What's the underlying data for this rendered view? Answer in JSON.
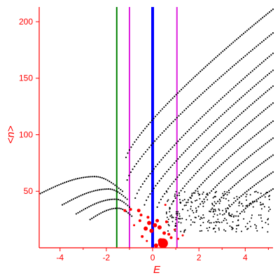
{
  "chart_data": {
    "type": "scatter",
    "xlabel": "E",
    "ylabel": "<n>",
    "xlim": [
      -4.9,
      5.2
    ],
    "ylim": [
      0,
      213
    ],
    "xticks": [
      "-4",
      "-2",
      "0",
      "2",
      "4"
    ],
    "xtick_values": [
      -4,
      -2,
      0,
      2,
      4
    ],
    "yticks": [
      "50",
      "100",
      "150",
      "200"
    ],
    "ytick_values": [
      50,
      100,
      150,
      200
    ],
    "grid": false,
    "legend": "none",
    "colors": {
      "axis": "#ff0000",
      "tick_text": "#ff0000",
      "dots": "#000000",
      "highlight": "#ff0000",
      "line_zero": "#0000ff",
      "line_sides": "#dd22dd",
      "line_left": "#008000"
    },
    "vertical_lines": [
      {
        "x": -1.55,
        "color": "#008000",
        "width": "thin"
      },
      {
        "x": -1.0,
        "color": "#dd22dd",
        "width": "thin"
      },
      {
        "x": 0.0,
        "color": "#0000ff",
        "width": "thick"
      },
      {
        "x": 1.05,
        "color": "#dd22dd",
        "width": "thin"
      }
    ],
    "dot_series": [
      {
        "from": [
          -1.15,
          80
        ],
        "to": [
          5.2,
          211
        ],
        "step": 0.075,
        "shape": "concave"
      },
      {
        "from": [
          -1.1,
          60
        ],
        "to": [
          5.2,
          190
        ],
        "step": 0.08,
        "shape": "concave"
      },
      {
        "from": [
          -0.75,
          44
        ],
        "to": [
          5.2,
          172
        ],
        "step": 0.08,
        "shape": "concave"
      },
      {
        "from": [
          -0.35,
          38
        ],
        "to": [
          5.2,
          157
        ],
        "step": 0.08,
        "shape": "concave"
      },
      {
        "from": [
          0.2,
          36
        ],
        "to": [
          5.2,
          143
        ],
        "step": 0.08,
        "shape": "concave"
      },
      {
        "from": [
          0.75,
          35
        ],
        "to": [
          5.2,
          128
        ],
        "step": 0.08,
        "shape": "concave"
      },
      {
        "from": [
          1.3,
          34
        ],
        "to": [
          5.2,
          112
        ],
        "step": 0.08,
        "shape": "concave"
      },
      {
        "from": [
          1.9,
          33
        ],
        "to": [
          5.2,
          97
        ],
        "step": 0.08,
        "shape": "concave"
      },
      {
        "from": [
          2.5,
          32
        ],
        "to": [
          5.2,
          82
        ],
        "step": 0.08,
        "shape": "concave"
      },
      {
        "from": [
          3.1,
          30
        ],
        "to": [
          5.2,
          67
        ],
        "step": 0.08,
        "shape": "concave"
      },
      {
        "from": [
          3.7,
          28
        ],
        "to": [
          5.2,
          52
        ],
        "step": 0.08,
        "shape": "concave"
      },
      {
        "from": [
          -4.85,
          48
        ],
        "to": [
          -1.3,
          50
        ],
        "step": 0.08,
        "shape": "arch",
        "peak": [
          -2.5,
          63
        ]
      },
      {
        "from": [
          -3.9,
          38
        ],
        "to": [
          -1.1,
          43
        ],
        "step": 0.08,
        "shape": "arch",
        "peak": [
          -1.9,
          52
        ]
      },
      {
        "from": [
          -3.3,
          30
        ],
        "to": [
          -1.0,
          36
        ],
        "step": 0.08,
        "shape": "arch",
        "peak": [
          -1.6,
          43
        ]
      },
      {
        "from": [
          -2.7,
          25
        ],
        "to": [
          -0.9,
          28
        ],
        "step": 0.08,
        "shape": "arch",
        "peak": [
          -1.5,
          35
        ]
      }
    ],
    "scatter_cloud": {
      "x_range": [
        0.6,
        5.2
      ],
      "y_range": [
        14,
        50
      ],
      "count": 260,
      "seed": 7
    },
    "highlight_points": [
      {
        "x": 0.1,
        "y": 20,
        "size": 3
      },
      {
        "x": -0.15,
        "y": 22,
        "size": 3
      },
      {
        "x": 0.3,
        "y": 18,
        "size": 3
      },
      {
        "x": -0.3,
        "y": 17,
        "size": 3
      },
      {
        "x": 0.2,
        "y": 24,
        "size": 2.5
      },
      {
        "x": 0.5,
        "y": 13,
        "size": 2.5
      },
      {
        "x": -0.05,
        "y": 15,
        "size": 3
      },
      {
        "x": 0.45,
        "y": 4,
        "size": 7
      },
      {
        "x": 0.35,
        "y": 6,
        "size": 4
      },
      {
        "x": 0.15,
        "y": 2,
        "size": 3
      },
      {
        "x": -0.6,
        "y": 33,
        "size": 2.5
      },
      {
        "x": -0.95,
        "y": 34,
        "size": 2
      },
      {
        "x": -1.2,
        "y": 33,
        "size": 2
      },
      {
        "x": -0.5,
        "y": 29,
        "size": 2
      },
      {
        "x": 0.7,
        "y": 12,
        "size": 2
      },
      {
        "x": 0.8,
        "y": 9,
        "size": 2
      },
      {
        "x": 0.95,
        "y": 16,
        "size": 1.5
      },
      {
        "x": -0.45,
        "y": 10,
        "size": 2
      },
      {
        "x": -0.55,
        "y": 24,
        "size": 2
      },
      {
        "x": 0.6,
        "y": 23,
        "size": 2
      },
      {
        "x": -0.2,
        "y": 27,
        "size": 2
      },
      {
        "x": 1.1,
        "y": 8,
        "size": 1.5
      },
      {
        "x": -0.8,
        "y": 20,
        "size": 1.5
      },
      {
        "x": 0.55,
        "y": 38,
        "size": 1.5
      },
      {
        "x": -0.25,
        "y": 6,
        "size": 1.5
      },
      {
        "x": 1.3,
        "y": 11,
        "size": 1.5
      }
    ]
  }
}
